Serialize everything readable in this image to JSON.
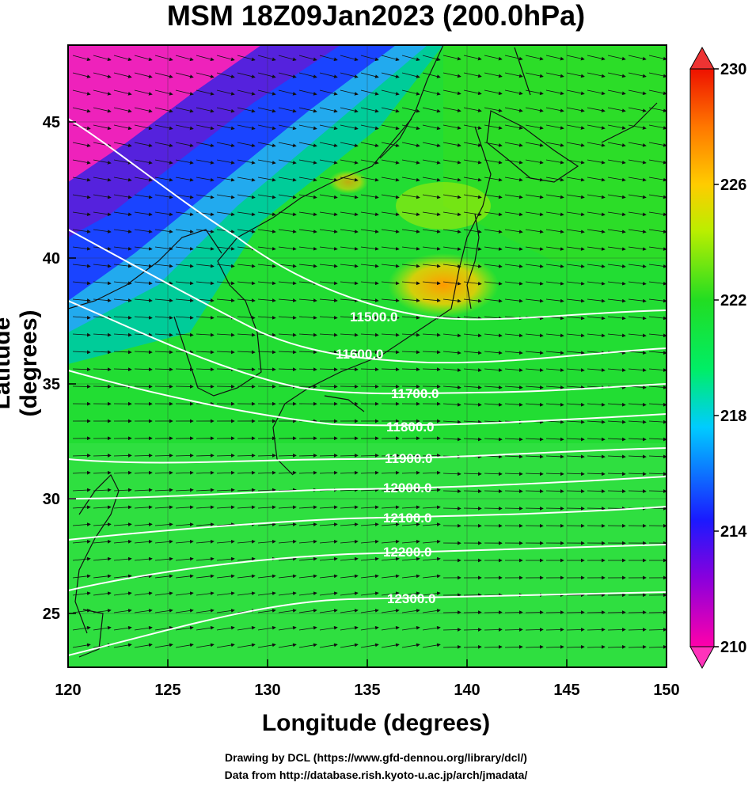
{
  "title": "MSM 18Z09Jan2023 (200.0hPa)",
  "xlabel": "Longitude (degrees)",
  "ylabel": "Latitude  (degrees)",
  "x_ticks": [
    "120",
    "125",
    "130",
    "135",
    "140",
    "145",
    "150"
  ],
  "y_ticks": [
    "25",
    "30",
    "35",
    "40",
    "45"
  ],
  "colorbar": {
    "ticks": [
      "210",
      "214",
      "218",
      "222",
      "226",
      "230"
    ],
    "range": [
      210,
      230
    ],
    "colors": [
      "#ff00aa",
      "#8800dd",
      "#1a1aff",
      "#00ccff",
      "#00ee66",
      "#22dd22",
      "#bbee00",
      "#ffcc00",
      "#ff7700",
      "#ee1100"
    ]
  },
  "contours": [
    "11500.0",
    "11600.0",
    "11700.0",
    "11800.0",
    "11900.0",
    "12000.0",
    "12100.0",
    "12200.0",
    "12300.0"
  ],
  "credits": [
    "Drawing by DCL (https://www.gfd-dennou.org/library/dcl/)",
    "Data from http://database.rish.kyoto-u.ac.jp/arch/jmadata/"
  ]
}
